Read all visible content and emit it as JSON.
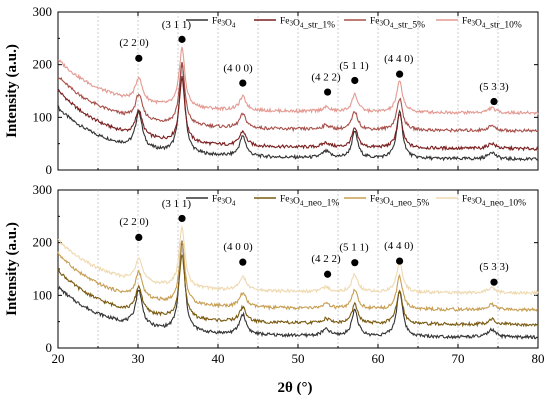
{
  "chart_data": [
    {
      "type": "line",
      "panel": "top",
      "ylabel": "Intensity (a.u.)",
      "xlim": [
        20,
        80
      ],
      "ylim": [
        0,
        300
      ],
      "xticks": [
        "20",
        "30",
        "40",
        "50",
        "60",
        "70",
        "80"
      ],
      "yticks": [
        "0",
        "100",
        "200",
        "300"
      ],
      "legend": {
        "position": "top-right",
        "entries": [
          {
            "label": "Fe3O4",
            "color": "#333333"
          },
          {
            "label": "Fe3O4_str_1%",
            "color": "#7a1f1f"
          },
          {
            "label": "Fe3O4_str_5%",
            "color": "#a8504a"
          },
          {
            "label": "Fe3O4_str_10%",
            "color": "#e39a92"
          }
        ]
      },
      "series": [
        {
          "name": "Fe3O4",
          "color": "#333333",
          "baseline": 18,
          "x_start": 20,
          "x_end": 80,
          "start_level": 118,
          "scale": 1.0
        },
        {
          "name": "Fe3O4_str_1%",
          "color": "#7a1f1f",
          "baseline": 38,
          "x_start": 20,
          "x_end": 80,
          "start_level": 152,
          "scale": 0.72
        },
        {
          "name": "Fe3O4_str_5%",
          "color": "#a8504a",
          "baseline": 72,
          "x_start": 20,
          "x_end": 80,
          "start_level": 178,
          "scale": 0.68
        },
        {
          "name": "Fe3O4_str_10%",
          "color": "#e39a92",
          "baseline": 106,
          "x_start": 20,
          "x_end": 80,
          "start_level": 210,
          "scale": 0.66
        }
      ],
      "peaks": [
        {
          "position": 30.1,
          "height": 68,
          "width": 0.5
        },
        {
          "position": 35.5,
          "height": 170,
          "width": 0.42
        },
        {
          "position": 43.1,
          "height": 38,
          "width": 0.5
        },
        {
          "position": 53.5,
          "height": 12,
          "width": 0.6
        },
        {
          "position": 57.1,
          "height": 50,
          "width": 0.45
        },
        {
          "position": 62.7,
          "height": 88,
          "width": 0.45
        },
        {
          "position": 74.2,
          "height": 14,
          "width": 0.55
        }
      ],
      "annotations": [
        {
          "label": "(2 2 0)",
          "dot": [
            30.1,
            212
          ],
          "text": [
            29.5,
            235
          ]
        },
        {
          "label": "(3 1 1)",
          "dot": [
            35.5,
            248
          ],
          "text": [
            34.8,
            270
          ]
        },
        {
          "label": "(4 0 0)",
          "dot": [
            43.1,
            165
          ],
          "text": [
            42.5,
            187
          ]
        },
        {
          "label": "(4 2 2)",
          "dot": [
            53.7,
            148
          ],
          "text": [
            53.5,
            170
          ]
        },
        {
          "label": "(5 1 1)",
          "dot": [
            57.1,
            170
          ],
          "text": [
            57.0,
            192
          ]
        },
        {
          "label": "(4 4 0)",
          "dot": [
            62.7,
            182
          ],
          "text": [
            62.6,
            205
          ]
        },
        {
          "label": "(5 3 3)",
          "dot": [
            74.5,
            130
          ],
          "text": [
            74.5,
            152
          ]
        }
      ]
    },
    {
      "type": "line",
      "panel": "bottom",
      "xlabel": "2θ (°)",
      "ylabel": "Intensity (a.u.)",
      "xlim": [
        20,
        80
      ],
      "ylim": [
        0,
        300
      ],
      "xticks": [
        "20",
        "30",
        "40",
        "50",
        "60",
        "70",
        "80"
      ],
      "yticks": [
        "0",
        "100",
        "200",
        "300"
      ],
      "legend": {
        "position": "top-right",
        "entries": [
          {
            "label": "Fe3O4",
            "color": "#333333"
          },
          {
            "label": "Fe3O4_neo_1%",
            "color": "#7a5a10"
          },
          {
            "label": "Fe3O4_neo_5%",
            "color": "#c79e52"
          },
          {
            "label": "Fe3O4_neo_10%",
            "color": "#efd9b0"
          }
        ]
      },
      "series": [
        {
          "name": "Fe3O4",
          "color": "#333333",
          "baseline": 18,
          "x_start": 20,
          "x_end": 80,
          "start_level": 116,
          "scale": 1.0
        },
        {
          "name": "Fe3O4_neo_1%",
          "color": "#7a5a10",
          "baseline": 42,
          "x_start": 20,
          "x_end": 80,
          "start_level": 148,
          "scale": 0.72
        },
        {
          "name": "Fe3O4_neo_5%",
          "color": "#c79e52",
          "baseline": 70,
          "x_start": 20,
          "x_end": 80,
          "start_level": 180,
          "scale": 0.7
        },
        {
          "name": "Fe3O4_neo_10%",
          "color": "#efd9b0",
          "baseline": 102,
          "x_start": 20,
          "x_end": 80,
          "start_level": 205,
          "scale": 0.68
        }
      ],
      "peaks": [
        {
          "position": 30.1,
          "height": 68,
          "width": 0.5
        },
        {
          "position": 35.5,
          "height": 170,
          "width": 0.42
        },
        {
          "position": 43.1,
          "height": 38,
          "width": 0.5
        },
        {
          "position": 53.5,
          "height": 12,
          "width": 0.6
        },
        {
          "position": 57.1,
          "height": 50,
          "width": 0.45
        },
        {
          "position": 62.7,
          "height": 88,
          "width": 0.45
        },
        {
          "position": 74.2,
          "height": 14,
          "width": 0.55
        }
      ],
      "annotations": [
        {
          "label": "(2 2 0)",
          "dot": [
            30.1,
            210
          ],
          "text": [
            29.5,
            234
          ]
        },
        {
          "label": "(3 1 1)",
          "dot": [
            35.5,
            246
          ],
          "text": [
            34.8,
            268
          ]
        },
        {
          "label": "(4 0 0)",
          "dot": [
            43.1,
            163
          ],
          "text": [
            42.5,
            186
          ]
        },
        {
          "label": "(4 2 2)",
          "dot": [
            53.7,
            140
          ],
          "text": [
            53.5,
            163
          ]
        },
        {
          "label": "(5 1 1)",
          "dot": [
            57.1,
            162
          ],
          "text": [
            57.0,
            185
          ]
        },
        {
          "label": "(4 4 0)",
          "dot": [
            62.7,
            165
          ],
          "text": [
            62.6,
            188
          ]
        },
        {
          "label": "(5 3 3)",
          "dot": [
            74.5,
            125
          ],
          "text": [
            74.5,
            148
          ]
        }
      ]
    }
  ]
}
